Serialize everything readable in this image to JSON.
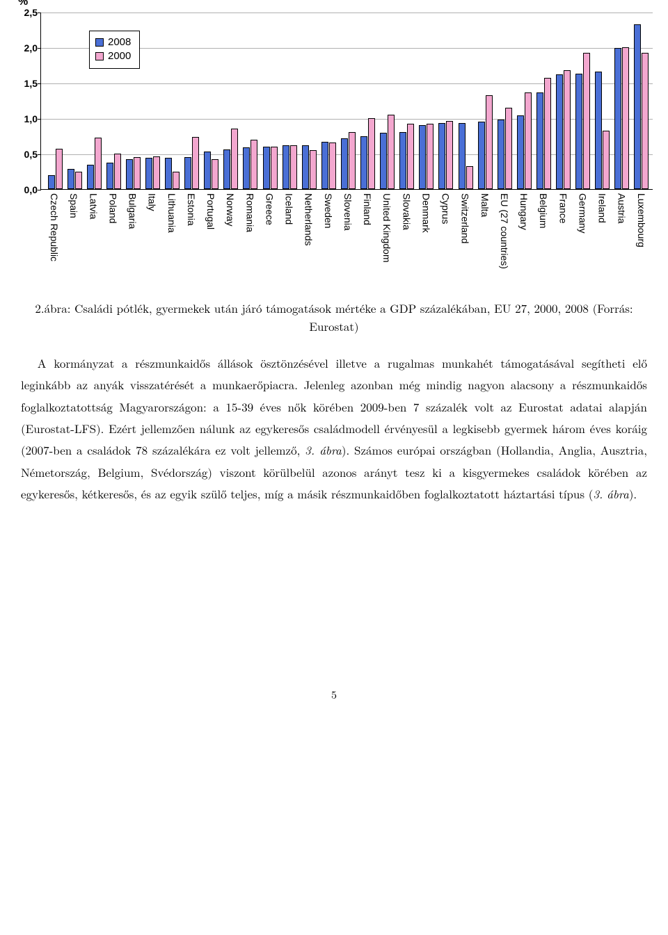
{
  "chart": {
    "type": "bar",
    "y_unit": "%",
    "ylim": [
      0.0,
      2.5
    ],
    "ytick_step": 0.5,
    "yticks": [
      "0,0",
      "0,5",
      "1,0",
      "1,5",
      "2,0",
      "2,5"
    ],
    "ytick_values": [
      0.0,
      0.5,
      1.0,
      1.5,
      2.0,
      2.5
    ],
    "grid_color": "#b0b0b0",
    "background_color": "#ffffff",
    "axis_color": "#000000",
    "series_order": [
      "s2008",
      "s2000"
    ],
    "series": {
      "s2008": {
        "label": "2008",
        "color": "#4a6fd6"
      },
      "s2000": {
        "label": "2000",
        "color": "#f3a7cf"
      }
    },
    "legend": {
      "position": "inside-top-left",
      "border_color": "#000000",
      "background_color": "#ffffff"
    },
    "categories": [
      {
        "label": "Czech Republic",
        "s2008": 0.2,
        "s2000": 0.57
      },
      {
        "label": "Spain",
        "s2008": 0.28,
        "s2000": 0.25
      },
      {
        "label": "Latvia",
        "s2008": 0.34,
        "s2000": 0.73
      },
      {
        "label": "Poland",
        "s2008": 0.37,
        "s2000": 0.5
      },
      {
        "label": "Bulgaria",
        "s2008": 0.42,
        "s2000": 0.45
      },
      {
        "label": "Italy",
        "s2008": 0.44,
        "s2000": 0.46
      },
      {
        "label": "Lithuania",
        "s2008": 0.44,
        "s2000": 0.25
      },
      {
        "label": "Estonia",
        "s2008": 0.45,
        "s2000": 0.74
      },
      {
        "label": "Portugal",
        "s2008": 0.53,
        "s2000": 0.42
      },
      {
        "label": "Norway",
        "s2008": 0.56,
        "s2000": 0.85
      },
      {
        "label": "Romania",
        "s2008": 0.59,
        "s2000": 0.7
      },
      {
        "label": "Greece",
        "s2008": 0.6,
        "s2000": 0.6
      },
      {
        "label": "Iceland",
        "s2008": 0.62,
        "s2000": 0.62
      },
      {
        "label": "Netherlands",
        "s2008": 0.62,
        "s2000": 0.55
      },
      {
        "label": "Sweden",
        "s2008": 0.67,
        "s2000": 0.66
      },
      {
        "label": "Slovenia",
        "s2008": 0.72,
        "s2000": 0.8
      },
      {
        "label": "Finland",
        "s2008": 0.75,
        "s2000": 1.0
      },
      {
        "label": "United Kingdom",
        "s2008": 0.79,
        "s2000": 1.05
      },
      {
        "label": "Slovakia",
        "s2008": 0.8,
        "s2000": 0.92
      },
      {
        "label": "Denmark",
        "s2008": 0.9,
        "s2000": 0.92
      },
      {
        "label": "Cyprus",
        "s2008": 0.93,
        "s2000": 0.96
      },
      {
        "label": "Switzerland",
        "s2008": 0.93,
        "s2000": 0.32
      },
      {
        "label": "Malta",
        "s2008": 0.95,
        "s2000": 1.32
      },
      {
        "label": "EU (27 countries)",
        "s2008": 0.98,
        "s2000": 1.15
      },
      {
        "label": "Hungary",
        "s2008": 1.04,
        "s2000": 1.36
      },
      {
        "label": "Belgium",
        "s2008": 1.36,
        "s2000": 1.57
      },
      {
        "label": "France",
        "s2008": 1.62,
        "s2000": 1.68
      },
      {
        "label": "Germany",
        "s2008": 1.63,
        "s2000": 1.92
      },
      {
        "label": "Ireland",
        "s2008": 1.66,
        "s2000": 0.82
      },
      {
        "label": "Austria",
        "s2008": 1.99,
        "s2000": 2.0
      },
      {
        "label": "Luxembourg",
        "s2008": 2.32,
        "s2000": 1.92
      }
    ]
  },
  "caption_line1": "2.ábra: Családi pótlék, gyermekek után járó támogatások mértéke a GDP százalékában, EU 27, 2000, 2008 (Forrás:",
  "caption_line2": "Eurostat)",
  "body": {
    "p": "A kormányzat a részmunkaidős állások ösztönzésével illetve a rugalmas munkahét támogatásával segítheti elő leginkább az anyák visszatérését a munkaerőpiacra. Jelenleg azonban még mindig nagyon alacsony a részmunkaidős foglalkoztatottság Magyarországon: a 15-39 éves nők körében 2009-ben 7 százalék volt az Eurostat adatai alapján (Eurostat-LFS). Ezért jellemzően nálunk az egykeresős családmodell érvényesül a legkisebb gyermek három éves koráig (2007-ben a családok 78 százalékára ez volt jellemző, ",
    "i1": "3. ábra",
    "p2": "). Számos európai országban (Hollandia, Anglia, Ausztria, Németország, Belgium, Svédország) viszont körülbelül azonos arányt tesz ki a kisgyermekes családok körében az egykeresős, kétkeresős, és az egyik szülő teljes, míg a másik részmunkaidőben foglalkoztatott háztartási típus (",
    "i2": "3. ábra",
    "p3": ")."
  },
  "page_number": "5"
}
